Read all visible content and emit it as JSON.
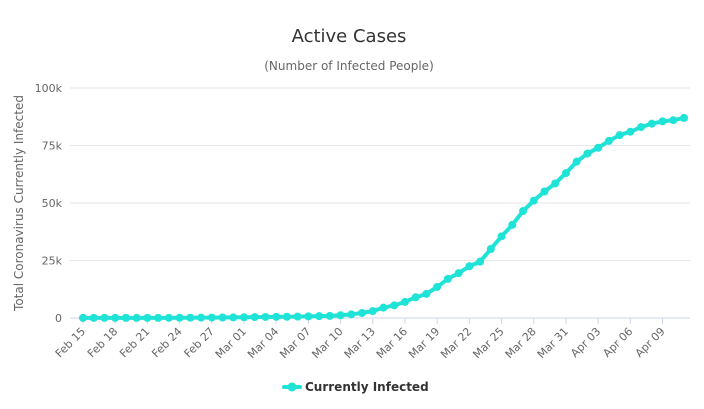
{
  "chart_data": {
    "type": "line",
    "title": "Active Cases",
    "subtitle": "(Number of Infected People)",
    "xlabel": "",
    "ylabel": "Total Coronavirus Currently Infected",
    "ylim": [
      0,
      100000
    ],
    "yticks": [
      0,
      25000,
      50000,
      75000,
      100000
    ],
    "ytick_labels": [
      "0",
      "25k",
      "50k",
      "75k",
      "100k"
    ],
    "grid": true,
    "legend_position": "bottom-center",
    "color": "#1ee3d6",
    "x": [
      "Feb 15",
      "Feb 16",
      "Feb 17",
      "Feb 18",
      "Feb 19",
      "Feb 20",
      "Feb 21",
      "Feb 22",
      "Feb 23",
      "Feb 24",
      "Feb 25",
      "Feb 26",
      "Feb 27",
      "Feb 28",
      "Feb 29",
      "Mar 01",
      "Mar 02",
      "Mar 03",
      "Mar 04",
      "Mar 05",
      "Mar 06",
      "Mar 07",
      "Mar 08",
      "Mar 09",
      "Mar 10",
      "Mar 11",
      "Mar 12",
      "Mar 13",
      "Mar 14",
      "Mar 15",
      "Mar 16",
      "Mar 17",
      "Mar 18",
      "Mar 19",
      "Mar 20",
      "Mar 21",
      "Mar 22",
      "Mar 23",
      "Mar 24",
      "Mar 25",
      "Mar 26",
      "Mar 27",
      "Mar 28",
      "Mar 29",
      "Mar 30",
      "Mar 31",
      "Apr 01",
      "Apr 02",
      "Apr 03",
      "Apr 04",
      "Apr 05",
      "Apr 06",
      "Apr 07",
      "Apr 08",
      "Apr 09",
      "Apr 10",
      "Apr 11"
    ],
    "x_tick_labels": [
      "Feb 15",
      "Feb 18",
      "Feb 21",
      "Feb 24",
      "Feb 27",
      "Mar 01",
      "Mar 04",
      "Mar 07",
      "Mar 10",
      "Mar 13",
      "Mar 16",
      "Mar 19",
      "Mar 22",
      "Mar 25",
      "Mar 28",
      "Mar 31",
      "Apr 03",
      "Apr 06",
      "Apr 09"
    ],
    "series": [
      {
        "name": "Currently Infected",
        "values": [
          50,
          50,
          50,
          50,
          50,
          50,
          50,
          60,
          80,
          100,
          120,
          150,
          180,
          220,
          260,
          300,
          400,
          450,
          500,
          550,
          600,
          700,
          800,
          900,
          1200,
          1600,
          2200,
          3000,
          4500,
          5500,
          7000,
          9000,
          10500,
          13500,
          17000,
          19500,
          22500,
          24500,
          30000,
          35500,
          40500,
          46500,
          51000,
          55000,
          58500,
          63000,
          68000,
          71500,
          74000,
          77000,
          79500,
          81000,
          83000,
          84500,
          85500,
          86000,
          87000
        ]
      }
    ]
  }
}
